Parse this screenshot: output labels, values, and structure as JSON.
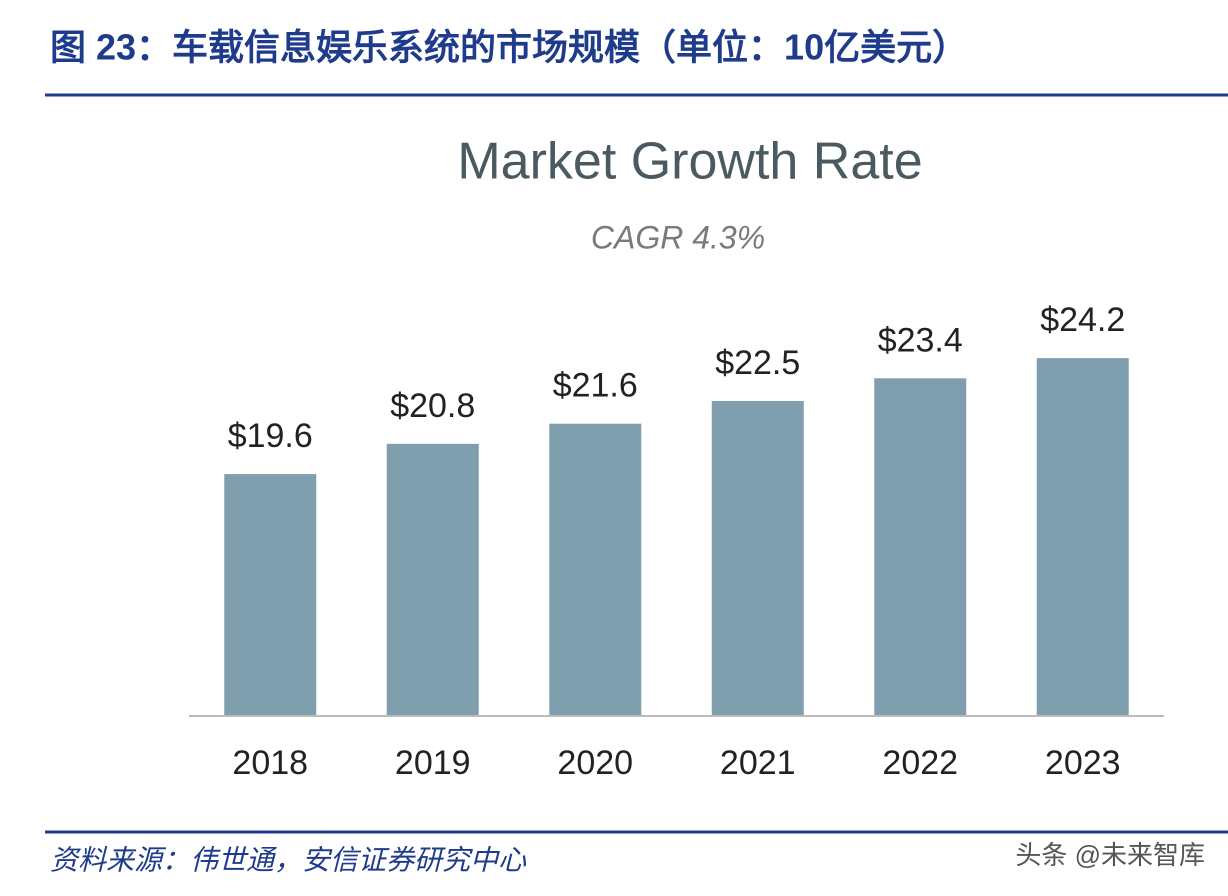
{
  "header": {
    "title": "图 23：车载信息娱乐系统的市场规模（单位：10亿美元）"
  },
  "chart_data": {
    "type": "bar",
    "title": "Market Growth Rate",
    "subtitle": "CAGR 4.3%",
    "categories": [
      "2018",
      "2019",
      "2020",
      "2021",
      "2022",
      "2023"
    ],
    "values": [
      19.6,
      20.8,
      21.6,
      22.5,
      23.4,
      24.2
    ],
    "value_labels": [
      "$19.6",
      "$20.8",
      "$21.6",
      "$22.5",
      "$23.4",
      "$24.2"
    ],
    "color": "#7f9fae",
    "ylim": [
      10,
      30
    ]
  },
  "source": "资料来源：伟世通，安信证券研究中心",
  "watermark": "头条 @未来智库"
}
